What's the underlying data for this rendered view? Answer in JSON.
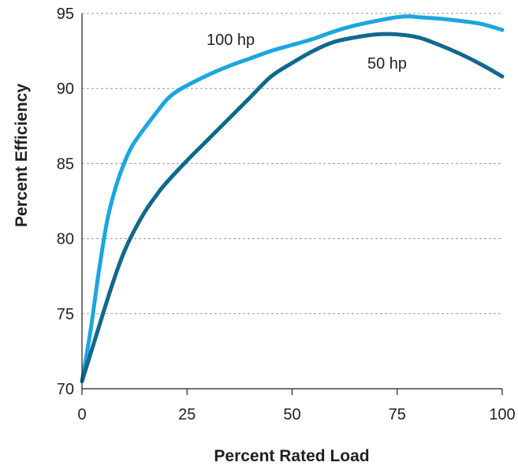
{
  "chart_data": {
    "type": "line",
    "title": "",
    "xlabel": "Percent Rated Load",
    "ylabel": "Percent Efficiency",
    "xlim": [
      0,
      100
    ],
    "ylim": [
      70,
      95
    ],
    "x_ticks": [
      "0",
      "25",
      "50",
      "75",
      "100"
    ],
    "y_ticks": [
      "70",
      "75",
      "80",
      "85",
      "90",
      "95"
    ],
    "grid": "horizontal dashed",
    "series": [
      {
        "name": "100 hp",
        "color": "#1ba6df",
        "x": [
          0,
          2,
          4,
          6,
          8,
          10,
          12,
          15,
          18,
          20,
          22,
          25,
          30,
          35,
          40,
          45,
          50,
          55,
          60,
          65,
          70,
          75,
          78,
          80,
          85,
          90,
          95,
          100
        ],
        "y": [
          70.5,
          73.8,
          77.8,
          81.2,
          83.4,
          85.0,
          86.2,
          87.4,
          88.5,
          89.2,
          89.7,
          90.2,
          90.9,
          91.5,
          92.0,
          92.5,
          92.9,
          93.3,
          93.8,
          94.2,
          94.5,
          94.75,
          94.8,
          94.75,
          94.65,
          94.5,
          94.3,
          93.9
        ]
      },
      {
        "name": "50 hp",
        "color": "#10688f",
        "x": [
          0,
          2,
          4,
          6,
          8,
          10,
          12,
          15,
          18,
          20,
          25,
          30,
          35,
          40,
          45,
          50,
          55,
          60,
          65,
          70,
          75,
          80,
          85,
          90,
          95,
          100
        ],
        "y": [
          70.5,
          72.3,
          74.1,
          75.9,
          77.6,
          79.1,
          80.3,
          81.8,
          83.0,
          83.7,
          85.2,
          86.6,
          88.0,
          89.4,
          90.8,
          91.7,
          92.5,
          93.1,
          93.4,
          93.6,
          93.6,
          93.4,
          92.9,
          92.3,
          91.6,
          90.8
        ]
      }
    ]
  }
}
